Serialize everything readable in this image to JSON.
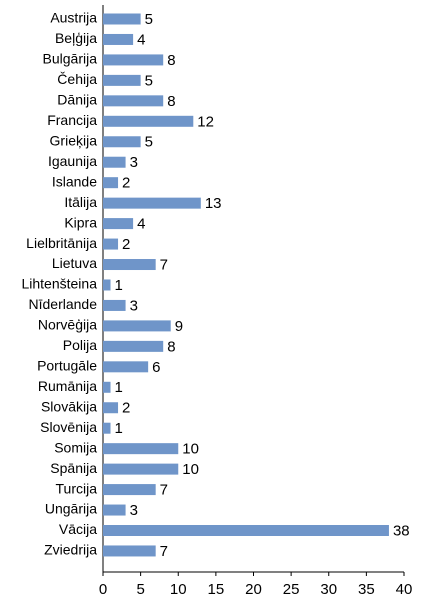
{
  "chart_data": {
    "type": "barh",
    "categories": [
      "Austrija",
      "Beļģija",
      "Bulgārija",
      "Čehija",
      "Dānija",
      "Francija",
      "Grieķija",
      "Igaunija",
      "Islande",
      "Itālija",
      "Kipra",
      "Lielbritānija",
      "Lietuva",
      "Lihtenšteina",
      "Nīderlande",
      "Norvēģija",
      "Polija",
      "Portugāle",
      "Rumānija",
      "Slovākija",
      "Slovēnija",
      "Somija",
      "Spānija",
      "Turcija",
      "Ungārija",
      "Vācija",
      "Zviedrija"
    ],
    "values": [
      5,
      4,
      8,
      5,
      8,
      12,
      5,
      3,
      2,
      13,
      4,
      2,
      7,
      1,
      3,
      9,
      8,
      6,
      1,
      2,
      1,
      10,
      10,
      7,
      3,
      38,
      7
    ],
    "color": "#6f95c9",
    "xlim": [
      0,
      40
    ],
    "xticks": [
      0,
      5,
      10,
      15,
      20,
      25,
      30,
      35,
      40
    ],
    "grid": false
  }
}
